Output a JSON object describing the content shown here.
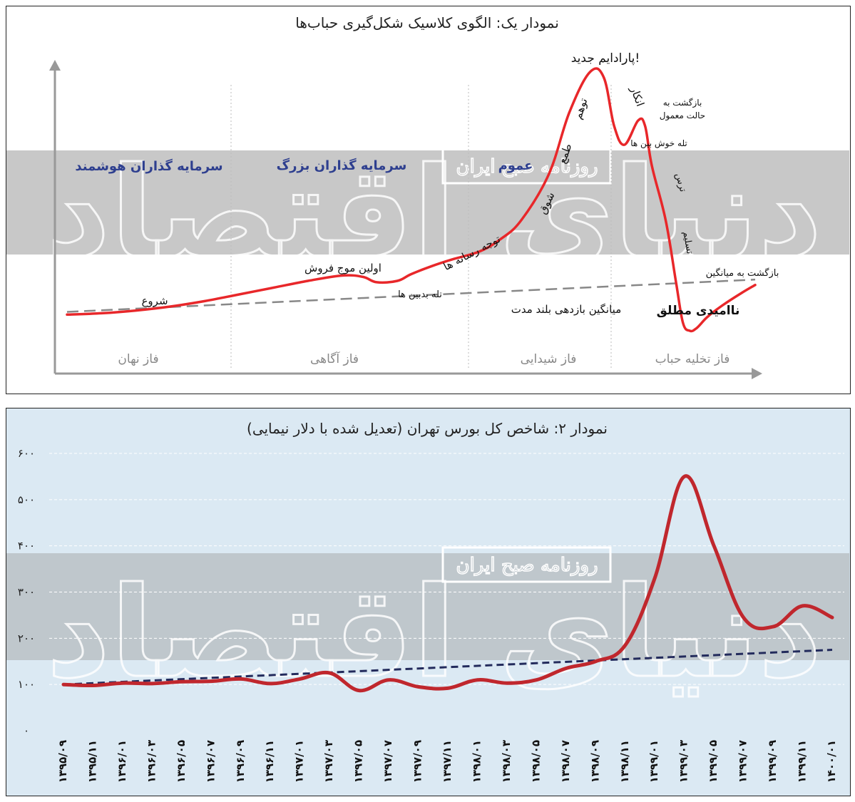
{
  "colors": {
    "curve": "#e8272a",
    "curve2": "#c0272d",
    "dashed1": "#888888",
    "dashed2": "#232b5c",
    "band": "#c8c8c8",
    "watermark": "#ffffff",
    "investor_label": "#2e3f8f",
    "panel2_bg": "#dbe9f3"
  },
  "chart1": {
    "title": "نمودار یک: الگوی کلاسیک شکل‌گیری حباب‌ها",
    "watermark_main": "دنیای اقتصاد",
    "watermark_small": "روزنامه صبح ایران",
    "phases": [
      "فاز نهان",
      "فاز آگاهی",
      "فاز شیدایی",
      "فاز تخلیه حباب"
    ],
    "investors": [
      "سرمایه گذاران هوشمند",
      "سرمایه گذاران بزرگ",
      "عموم"
    ],
    "annotations": {
      "start": "شروع",
      "first_sell": "اولین موج فروش",
      "bear_trap": "تله بدبین ها",
      "media": "توجه رسانه ها",
      "enthusiasm": "شوق",
      "greed": "طمع",
      "delusion": "توهم",
      "new_paradigm": "پارادایم جدید!",
      "denial": "انکار",
      "bull_trap": "تله خوش بین ها",
      "return_normal_1": "بازگشت به",
      "return_normal_2": "حالت معمول",
      "fear": "ترس",
      "surrender": "تسلیم",
      "return_mean": "بازگشت به میانگین",
      "despair": "ناامیدی مطلق",
      "long_term_mean": "میانگین بازدهی بلند مدت"
    }
  },
  "chart_data": [
    {
      "type": "line",
      "title": "نمودار یک: الگوی کلاسیک شکل‌گیری حباب‌ها",
      "series": [
        {
          "name": "",
          "x": [
            0,
            5,
            10,
            15,
            20,
            25,
            30,
            35,
            40,
            43,
            45,
            48,
            50,
            53,
            56,
            60,
            63,
            66,
            70,
            73,
            76,
            78,
            79.5,
            81,
            83,
            84,
            85,
            87,
            88.5,
            89.5,
            90.5,
            91.5,
            93,
            95,
            98,
            100
          ],
          "values": [
            0,
            0.5,
            1.5,
            3,
            5,
            7.5,
            10,
            12.5,
            14.5,
            14,
            12,
            12.5,
            15,
            18,
            20.5,
            23.5,
            28,
            35,
            52,
            75,
            90,
            88,
            70,
            63,
            72,
            70,
            55,
            35,
            12,
            -3,
            -6,
            -5,
            -1,
            3,
            8,
            11
          ]
        }
      ],
      "mean_line": {
        "x": [
          0,
          100
        ],
        "values": [
          1,
          13
        ]
      },
      "grid": false
    },
    {
      "type": "line",
      "title": "نمودار ۲: شاخص کل بورس تهران  (تعدیل شده با دلار نیمایی)",
      "x": [
        "۱۳۹۵/۰۹",
        "۱۳۹۵/۱۱",
        "۱۳۹۶/۰۱",
        "۱۳۹۶/۰۳",
        "۱۳۹۶/۰۵",
        "۱۳۹۶/۰۷",
        "۱۳۹۶/۰۹",
        "۱۳۹۶/۱۱",
        "۱۳۹۷/۰۱",
        "۱۳۹۷/۰۳",
        "۱۳۹۷/۰۵",
        "۱۳۹۷/۰۷",
        "۱۳۹۷/۰۹",
        "۱۳۹۷/۱۱",
        "۱۳۹۸/۰۱",
        "۱۳۹۸/۰۳",
        "۱۳۹۸/۰۵",
        "۱۳۹۸/۰۷",
        "۱۳۹۸/۰۹",
        "۱۳۹۸/۱۱",
        "۱۳۹۹/۰۱",
        "۱۳۹۹/۰۳",
        "۱۳۹۹/۰۵",
        "۱۳۹۹/۰۷",
        "۱۳۹۹/۰۹",
        "۱۳۹۹/۱۱",
        "۱۴۰۰/۰۱"
      ],
      "series": [
        {
          "name": "",
          "values": [
            100,
            98,
            103,
            102,
            106,
            107,
            112,
            102,
            112,
            125,
            87,
            110,
            95,
            92,
            110,
            103,
            110,
            135,
            150,
            185,
            330,
            550,
            400,
            245,
            225,
            270,
            245
          ]
        },
        {
          "name": "",
          "values": [
            100,
            103,
            106,
            109,
            112,
            115,
            118,
            121,
            124,
            127,
            130,
            133,
            136,
            139,
            142,
            145,
            148,
            151,
            154,
            157,
            160,
            163,
            166,
            169,
            172,
            175,
            175
          ]
        }
      ],
      "y_ticks": [
        "۰",
        "۱۰۰",
        "۲۰۰",
        "۳۰۰",
        "۴۰۰",
        "۵۰۰",
        "۶۰۰"
      ],
      "ylim": [
        0,
        600
      ],
      "grid": true
    }
  ]
}
